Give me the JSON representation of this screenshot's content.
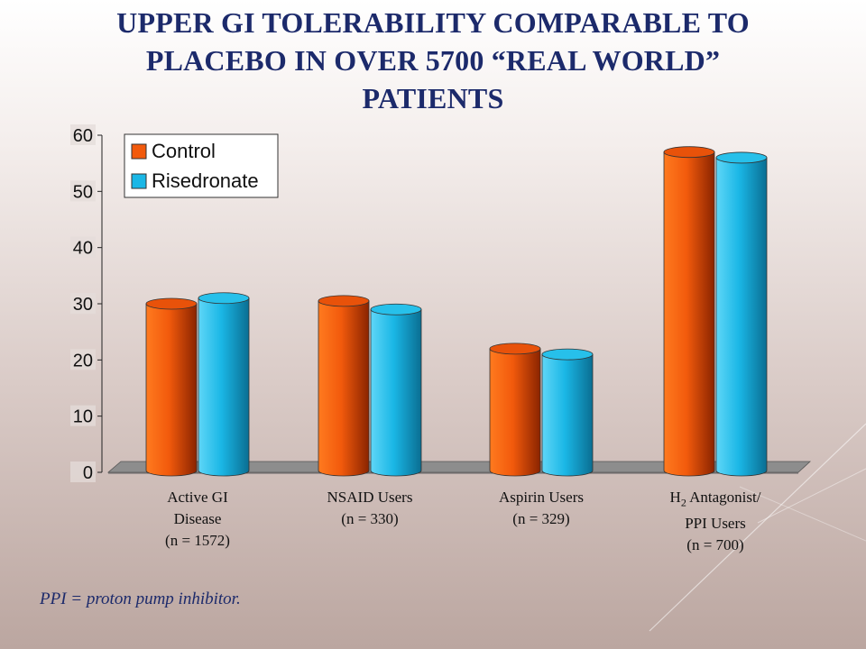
{
  "slide_title_lines": [
    "UPPER GI TOLERABILITY COMPARABLE TO",
    "PLACEBO IN OVER 5700 “REAL WORLD”",
    "PATIENTS"
  ],
  "footnote": "PPI = proton pump inhibitor.",
  "colors": {
    "control": "#f25a0c",
    "risedronate": "#1ab7e6",
    "title": "#1c2a6b"
  },
  "chart_data": {
    "type": "bar",
    "title": "",
    "xlabel": "",
    "ylabel": "",
    "ylim": [
      0,
      60
    ],
    "yticks": [
      "0",
      "10",
      "20",
      "30",
      "40",
      "50",
      "60"
    ],
    "legend_position": "top-left",
    "categories": [
      {
        "lines": [
          [
            {
              "t": "Active GI"
            }
          ],
          [
            {
              "t": "Disease"
            }
          ],
          [
            {
              "t": "(n = 1572)"
            }
          ]
        ]
      },
      {
        "lines": [
          [
            {
              "t": "NSAID Users"
            }
          ],
          [
            {
              "t": "(n = 330)"
            }
          ]
        ]
      },
      {
        "lines": [
          [
            {
              "t": "Aspirin Users"
            }
          ],
          [
            {
              "t": "(n = 329)"
            }
          ]
        ]
      },
      {
        "lines": [
          [
            {
              "t": "H"
            },
            {
              "t": "2",
              "sub": true
            },
            {
              "t": " Antagonist/"
            }
          ],
          [
            {
              "t": "PPI Users"
            }
          ],
          [
            {
              "t": "(n = 700)"
            }
          ]
        ]
      }
    ],
    "series": [
      {
        "name": "Control",
        "values": [
          30,
          30.5,
          22,
          57
        ]
      },
      {
        "name": "Risedronate",
        "values": [
          31,
          29,
          21,
          56
        ]
      }
    ]
  }
}
